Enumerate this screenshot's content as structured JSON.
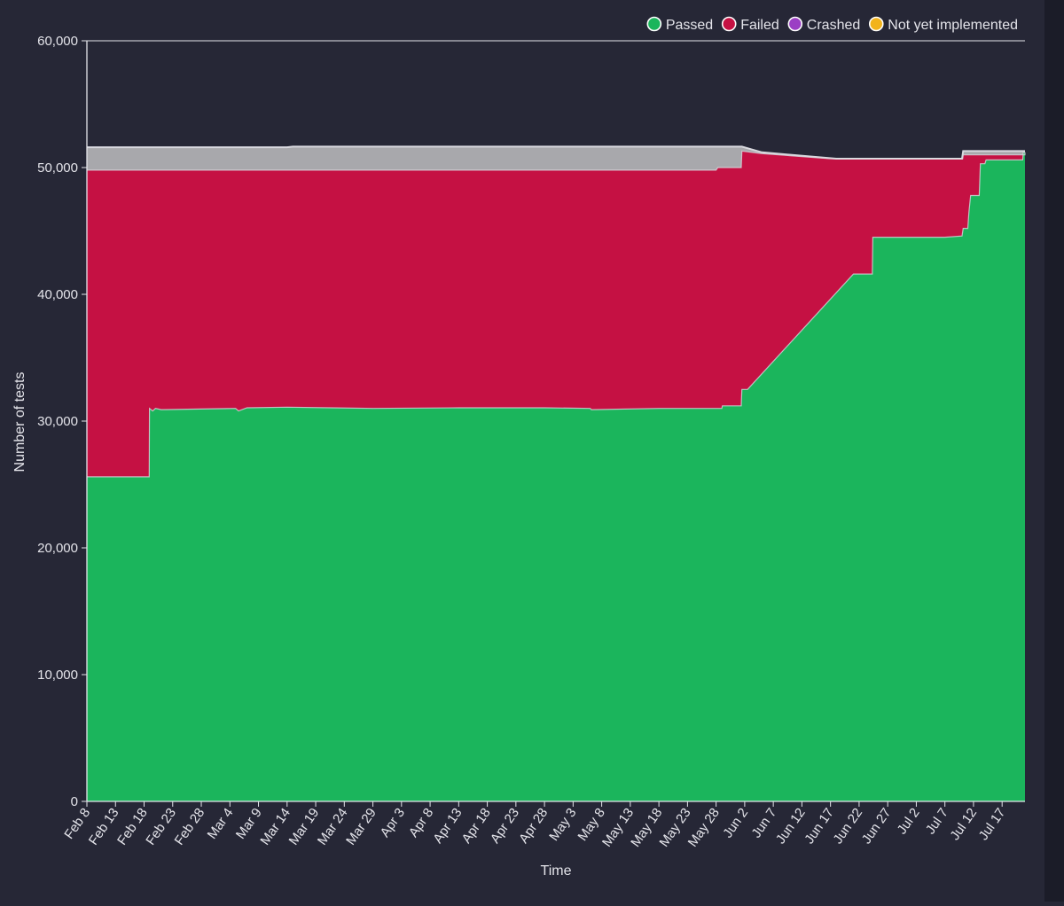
{
  "colors": {
    "background": "#262736",
    "passed": "#1bb55c",
    "failed": "#c51143",
    "crashed": "#9b3fc4",
    "not_yet_implemented": "#f2b31b",
    "total_band": "#a8a8ac",
    "axis": "#e4e4ea",
    "outline": "#d9d9df"
  },
  "chart_data": {
    "type": "area",
    "stacked": true,
    "title": "",
    "xlabel": "Time",
    "ylabel": "Number of tests",
    "ylim": [
      0,
      60000
    ],
    "xlim_days": [
      0,
      164
    ],
    "y_ticks": [
      {
        "value": 0,
        "label": "0"
      },
      {
        "value": 10000,
        "label": "10,000"
      },
      {
        "value": 20000,
        "label": "20,000"
      },
      {
        "value": 30000,
        "label": "30,000"
      },
      {
        "value": 40000,
        "label": "40,000"
      },
      {
        "value": 50000,
        "label": "50,000"
      },
      {
        "value": 60000,
        "label": "60,000"
      }
    ],
    "x_ticks": [
      {
        "day": 0,
        "label": "Feb 8"
      },
      {
        "day": 5,
        "label": "Feb 13"
      },
      {
        "day": 10,
        "label": "Feb 18"
      },
      {
        "day": 15,
        "label": "Feb 23"
      },
      {
        "day": 20,
        "label": "Feb 28"
      },
      {
        "day": 25,
        "label": "Mar 4"
      },
      {
        "day": 30,
        "label": "Mar 9"
      },
      {
        "day": 35,
        "label": "Mar 14"
      },
      {
        "day": 40,
        "label": "Mar 19"
      },
      {
        "day": 45,
        "label": "Mar 24"
      },
      {
        "day": 50,
        "label": "Mar 29"
      },
      {
        "day": 55,
        "label": "Apr 3"
      },
      {
        "day": 60,
        "label": "Apr 8"
      },
      {
        "day": 65,
        "label": "Apr 13"
      },
      {
        "day": 70,
        "label": "Apr 18"
      },
      {
        "day": 75,
        "label": "Apr 23"
      },
      {
        "day": 80,
        "label": "Apr 28"
      },
      {
        "day": 85,
        "label": "May 3"
      },
      {
        "day": 90,
        "label": "May 8"
      },
      {
        "day": 95,
        "label": "May 13"
      },
      {
        "day": 100,
        "label": "May 18"
      },
      {
        "day": 105,
        "label": "May 23"
      },
      {
        "day": 110,
        "label": "May 28"
      },
      {
        "day": 115,
        "label": "Jun 2"
      },
      {
        "day": 120,
        "label": "Jun 7"
      },
      {
        "day": 125,
        "label": "Jun 12"
      },
      {
        "day": 130,
        "label": "Jun 17"
      },
      {
        "day": 135,
        "label": "Jun 22"
      },
      {
        "day": 140,
        "label": "Jun 27"
      },
      {
        "day": 145,
        "label": "Jul 2"
      },
      {
        "day": 150,
        "label": "Jul 7"
      },
      {
        "day": 155,
        "label": "Jul 12"
      },
      {
        "day": 160,
        "label": "Jul 17"
      }
    ],
    "legend": [
      {
        "name": "Passed",
        "color": "#1bb55c"
      },
      {
        "name": "Failed",
        "color": "#c51143"
      },
      {
        "name": "Crashed",
        "color": "#9b3fc4"
      },
      {
        "name": "Not yet implemented",
        "color": "#f2b31b"
      }
    ],
    "legend_position": "top-right",
    "series": [
      {
        "name": "Passed",
        "key": "passed",
        "points": [
          [
            0,
            25600
          ],
          [
            10.9,
            25600
          ],
          [
            10.95,
            31000
          ],
          [
            11.5,
            30800
          ],
          [
            12,
            31000
          ],
          [
            13,
            30900
          ],
          [
            26,
            31000
          ],
          [
            26.5,
            30800
          ],
          [
            28,
            31050
          ],
          [
            35,
            31100
          ],
          [
            50,
            31000
          ],
          [
            65,
            31050
          ],
          [
            80,
            31050
          ],
          [
            88,
            31000
          ],
          [
            88.2,
            30900
          ],
          [
            100,
            31000
          ],
          [
            111,
            31000
          ],
          [
            111.1,
            31200
          ],
          [
            114.4,
            31200
          ],
          [
            114.5,
            32500
          ],
          [
            115.5,
            32500
          ],
          [
            134,
            41600
          ],
          [
            137.3,
            41600
          ],
          [
            137.4,
            44500
          ],
          [
            150,
            44500
          ],
          [
            153,
            44600
          ],
          [
            153.2,
            45200
          ],
          [
            154,
            45200
          ],
          [
            154.2,
            46500
          ],
          [
            154.5,
            47800
          ],
          [
            156,
            47800
          ],
          [
            156.2,
            50300
          ],
          [
            157,
            50300
          ],
          [
            157.2,
            50600
          ],
          [
            163.6,
            50600
          ],
          [
            163.7,
            51200
          ],
          [
            164,
            51200
          ]
        ]
      },
      {
        "name": "Failed",
        "key": "failed_top",
        "points": [
          [
            0,
            49800
          ],
          [
            35,
            49800
          ],
          [
            110,
            49800
          ],
          [
            110.3,
            50000
          ],
          [
            114.4,
            50000
          ],
          [
            114.5,
            51300
          ],
          [
            118,
            51100
          ],
          [
            130,
            50700
          ],
          [
            150,
            50700
          ],
          [
            153.1,
            50700
          ],
          [
            153.2,
            51000
          ],
          [
            164,
            51000
          ],
          [
            164,
            51200
          ]
        ]
      },
      {
        "name": "Not yet implemented",
        "key": "total",
        "points": [
          [
            0,
            51600
          ],
          [
            35,
            51600
          ],
          [
            36,
            51650
          ],
          [
            110,
            51650
          ],
          [
            114.5,
            51650
          ],
          [
            118,
            51200
          ],
          [
            131,
            50700
          ],
          [
            153,
            50700
          ],
          [
            153.2,
            51300
          ],
          [
            164,
            51300
          ]
        ]
      }
    ]
  }
}
